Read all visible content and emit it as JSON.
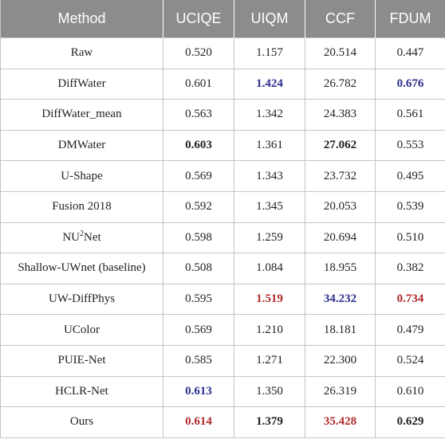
{
  "headers": [
    "Method",
    "UCIQE",
    "UIQM",
    "CCF",
    "FDUM"
  ],
  "rows": [
    {
      "method": "Raw",
      "uciqe": "0.520",
      "uiqm": "1.157",
      "ccf": "20.514",
      "fdum": "0.447"
    },
    {
      "method": "DiffWater",
      "uciqe": "0.601",
      "uiqm": "1.424",
      "ccf": "26.782",
      "fdum": "0.676"
    },
    {
      "method": "DiffWater_mean",
      "uciqe": "0.563",
      "uiqm": "1.342",
      "ccf": "24.383",
      "fdum": "0.561"
    },
    {
      "method": "DMWater",
      "uciqe": "0.603",
      "uiqm": "1.361",
      "ccf": "27.062",
      "fdum": "0.553"
    },
    {
      "method": "U-Shape",
      "uciqe": "0.569",
      "uiqm": "1.343",
      "ccf": "23.732",
      "fdum": "0.495"
    },
    {
      "method": "Fusion 2018",
      "uciqe": "0.592",
      "uiqm": "1.345",
      "ccf": "20.053",
      "fdum": "0.539"
    },
    {
      "method_prefix": "NU",
      "method_sup": "2",
      "method_suffix": "Net",
      "uciqe": "0.598",
      "uiqm": "1.259",
      "ccf": "20.694",
      "fdum": "0.510"
    },
    {
      "method": "Shallow-UWnet (baseline)",
      "uciqe": "0.508",
      "uiqm": "1.084",
      "ccf": "18.955",
      "fdum": "0.382"
    },
    {
      "method": "UW-DiffPhys",
      "uciqe": "0.595",
      "uiqm": "1.519",
      "ccf": "34.232",
      "fdum": "0.734"
    },
    {
      "method": "UColor",
      "uciqe": "0.569",
      "uiqm": "1.210",
      "ccf": "18.181",
      "fdum": "0.479"
    },
    {
      "method": "PUIE-Net",
      "uciqe": "0.585",
      "uiqm": "1.271",
      "ccf": "22.300",
      "fdum": "0.524"
    },
    {
      "method": "HCLR-Net",
      "uciqe": "0.613",
      "uiqm": "1.350",
      "ccf": "26.319",
      "fdum": "0.610"
    },
    {
      "method": "Ours",
      "uciqe": "0.614",
      "uiqm": "1.379",
      "ccf": "35.428",
      "fdum": "0.629"
    }
  ],
  "colors": {
    "header_bg": "#8c8c8e",
    "best_red": "#b22a2a",
    "second_blue": "#2c2f8e",
    "grid": "#c4c4c4"
  }
}
